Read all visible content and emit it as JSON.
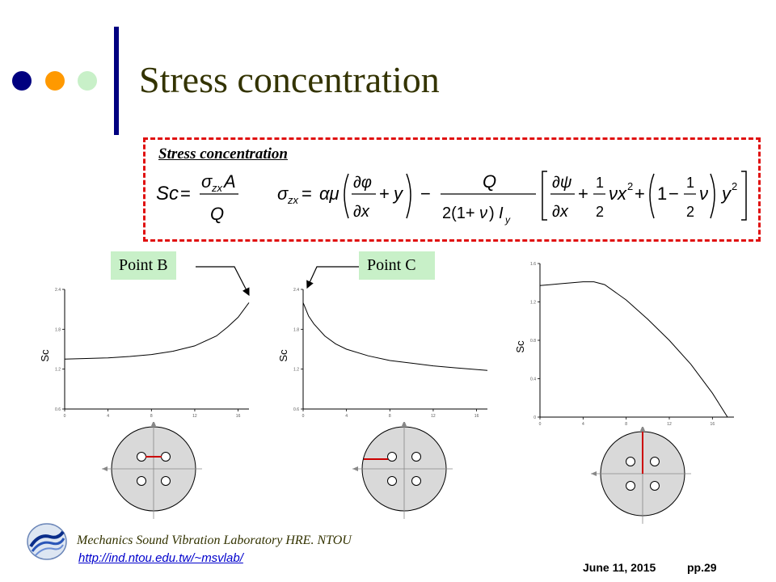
{
  "slide": {
    "title": "Stress concentration",
    "accent_colors": [
      "#000080",
      "#ff9900",
      "#c8f0c8"
    ]
  },
  "equation_box": {
    "heading": "Stress concentration",
    "eq1": "Sc = σzx A / Q",
    "eq2": "σzx = αμ(∂φ/∂x + y) − Q/(2(1+ν)Iy)[∂ψ/∂x + ½νx² + (1 − ½ν)y²]"
  },
  "callouts": {
    "point_b": "Point B",
    "point_c": "Point C"
  },
  "footer": {
    "lab": "Mechanics Sound Vibration Laboratory HRE. NTOU",
    "url": "http://ind.ntou.edu.tw/~msvlab/",
    "date": "June 11, 2015",
    "page": "pp.29",
    "logo_icon": "wave-logo-icon"
  },
  "chart_data": [
    {
      "type": "line",
      "ylabel": "Sc",
      "xlim": [
        0,
        17
      ],
      "ylim": [
        0.6,
        2.4
      ],
      "xticks": [
        "0",
        "4",
        "8",
        "12",
        "16"
      ],
      "yticks": [
        "0.6",
        "1.2",
        "1.8",
        "2.4"
      ],
      "x": [
        0,
        2,
        4,
        6,
        8,
        10,
        12,
        14,
        15,
        16,
        17
      ],
      "y": [
        1.35,
        1.36,
        1.37,
        1.39,
        1.42,
        1.47,
        1.55,
        1.7,
        1.83,
        1.98,
        2.2
      ],
      "diagram_marker": "horizontal line from center to upper-right hole"
    },
    {
      "type": "line",
      "ylabel": "Sc",
      "xlim": [
        0,
        17
      ],
      "ylim": [
        0.6,
        2.4
      ],
      "xticks": [
        "0",
        "4",
        "8",
        "12",
        "16"
      ],
      "yticks": [
        "0.6",
        "1.2",
        "1.8",
        "2.4"
      ],
      "x": [
        0,
        0.5,
        1,
        2,
        3,
        4,
        6,
        8,
        10,
        12,
        14,
        17
      ],
      "y": [
        2.2,
        2.0,
        1.88,
        1.7,
        1.58,
        1.5,
        1.4,
        1.33,
        1.29,
        1.25,
        1.22,
        1.18
      ],
      "diagram_marker": "horizontal line from outer edge to upper-left hole"
    },
    {
      "type": "line",
      "ylabel": "Sc",
      "xlim": [
        0,
        18
      ],
      "ylim": [
        0,
        1.6
      ],
      "xticks": [
        "0",
        "4",
        "8",
        "12",
        "16"
      ],
      "yticks": [
        "0",
        "0.4",
        "0.8",
        "1.2",
        "1.6"
      ],
      "x": [
        0,
        1,
        2,
        3,
        4,
        5,
        6,
        8,
        10,
        12,
        14,
        16,
        17.4
      ],
      "y": [
        1.37,
        1.38,
        1.39,
        1.4,
        1.41,
        1.41,
        1.38,
        1.22,
        1.02,
        0.8,
        0.55,
        0.25,
        0.0
      ],
      "diagram_marker": "vertical line from top edge to center"
    }
  ]
}
